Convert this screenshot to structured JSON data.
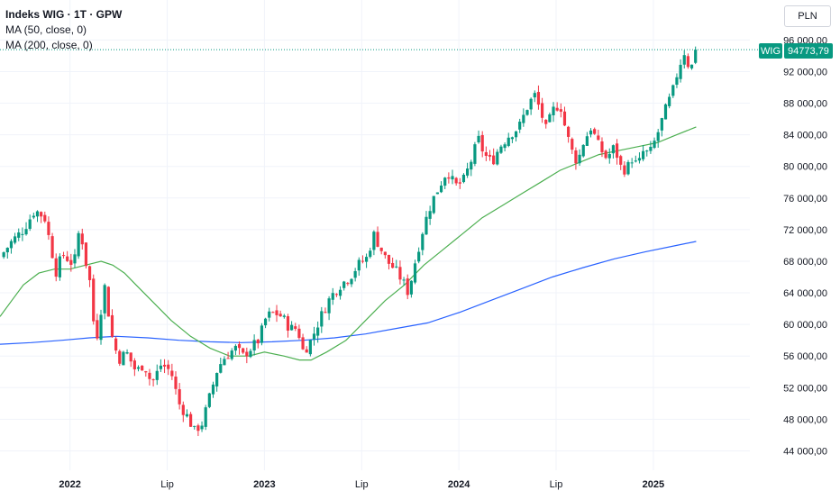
{
  "header": {
    "title": "Indeks WIG · 1T · GPW",
    "ma50_label": "MA (50, close, 0)",
    "ma200_label": "MA (200, close, 0)",
    "currency": "PLN"
  },
  "price_tag": {
    "symbol": "WIG",
    "value": "94773,79",
    "price": 94773.79
  },
  "colors": {
    "up": "#089981",
    "down": "#f23645",
    "ma50": "#4caf50",
    "ma200": "#2962ff",
    "grid": "#f0f3fa",
    "text": "#131722",
    "price_line": "#089981"
  },
  "chart_data": {
    "type": "candlestick",
    "title": "Indeks WIG · 1T · GPW",
    "ylim": [
      42000,
      96500
    ],
    "y_ticks": [
      "96 000,00",
      "92 000,00",
      "88 000,00",
      "84 000,00",
      "80 000,00",
      "76 000,00",
      "72 000,00",
      "68 000,00",
      "64 000,00",
      "60 000,00",
      "56 000,00",
      "52 000,00",
      "48 000,00",
      "44 000,00"
    ],
    "y_tick_values": [
      96000,
      92000,
      88000,
      84000,
      80000,
      76000,
      72000,
      68000,
      64000,
      60000,
      56000,
      52000,
      48000,
      44000
    ],
    "x_ticks": [
      {
        "label": "2022",
        "t": 2022.0
      },
      {
        "label": "Lip",
        "t": 2022.5
      },
      {
        "label": "2023",
        "t": 2023.0
      },
      {
        "label": "Lip",
        "t": 2023.5
      },
      {
        "label": "2024",
        "t": 2024.0
      },
      {
        "label": "Lip",
        "t": 2024.5
      },
      {
        "label": "2025",
        "t": 2025.0
      }
    ],
    "x_range": [
      2021.64,
      2025.96
    ],
    "close_path": [
      [
        2021.64,
        68500
      ],
      [
        2021.7,
        70500
      ],
      [
        2021.76,
        72000
      ],
      [
        2021.82,
        74500
      ],
      [
        2021.87,
        73500
      ],
      [
        2021.9,
        70000
      ],
      [
        2021.93,
        66500
      ],
      [
        2021.96,
        69000
      ],
      [
        2022.02,
        67500
      ],
      [
        2022.05,
        72500
      ],
      [
        2022.08,
        68000
      ],
      [
        2022.11,
        64500
      ],
      [
        2022.13,
        57000
      ],
      [
        2022.15,
        60500
      ],
      [
        2022.18,
        65000
      ],
      [
        2022.21,
        59000
      ],
      [
        2022.25,
        55500
      ],
      [
        2022.29,
        56500
      ],
      [
        2022.34,
        54000
      ],
      [
        2022.38,
        55000
      ],
      [
        2022.42,
        52500
      ],
      [
        2022.47,
        55000
      ],
      [
        2022.52,
        54000
      ],
      [
        2022.56,
        50000
      ],
      [
        2022.6,
        48500
      ],
      [
        2022.64,
        46500
      ],
      [
        2022.68,
        47500
      ],
      [
        2022.72,
        51000
      ],
      [
        2022.76,
        54500
      ],
      [
        2022.8,
        56000
      ],
      [
        2022.85,
        57000
      ],
      [
        2022.89,
        56000
      ],
      [
        2022.93,
        57000
      ],
      [
        2022.97,
        58000
      ],
      [
        2023.01,
        61000
      ],
      [
        2023.05,
        61500
      ],
      [
        2023.09,
        61000
      ],
      [
        2023.13,
        59500
      ],
      [
        2023.17,
        59500
      ],
      [
        2023.2,
        56500
      ],
      [
        2023.24,
        58000
      ],
      [
        2023.29,
        61000
      ],
      [
        2023.34,
        63500
      ],
      [
        2023.39,
        65000
      ],
      [
        2023.44,
        66000
      ],
      [
        2023.48,
        67500
      ],
      [
        2023.53,
        68500
      ],
      [
        2023.56,
        71500
      ],
      [
        2023.59,
        70000
      ],
      [
        2023.63,
        68000
      ],
      [
        2023.67,
        67000
      ],
      [
        2023.71,
        65500
      ],
      [
        2023.74,
        64000
      ],
      [
        2023.78,
        68500
      ],
      [
        2023.82,
        72500
      ],
      [
        2023.86,
        75500
      ],
      [
        2023.9,
        77500
      ],
      [
        2023.94,
        79500
      ],
      [
        2023.98,
        77500
      ],
      [
        2024.02,
        78000
      ],
      [
        2024.06,
        80500
      ],
      [
        2024.1,
        83500
      ],
      [
        2024.13,
        81500
      ],
      [
        2024.17,
        80500
      ],
      [
        2024.21,
        82500
      ],
      [
        2024.26,
        84000
      ],
      [
        2024.31,
        85000
      ],
      [
        2024.36,
        88000
      ],
      [
        2024.39,
        89000
      ],
      [
        2024.42,
        87000
      ],
      [
        2024.45,
        84500
      ],
      [
        2024.48,
        87000
      ],
      [
        2024.52,
        88000
      ],
      [
        2024.55,
        84500
      ],
      [
        2024.58,
        82000
      ],
      [
        2024.61,
        80500
      ],
      [
        2024.64,
        83000
      ],
      [
        2024.68,
        85000
      ],
      [
        2024.72,
        82500
      ],
      [
        2024.76,
        81000
      ],
      [
        2024.8,
        82500
      ],
      [
        2024.83,
        80000
      ],
      [
        2024.86,
        79500
      ],
      [
        2024.89,
        81000
      ],
      [
        2024.92,
        80000
      ],
      [
        2024.95,
        82000
      ],
      [
        2024.98,
        81500
      ],
      [
        2025.02,
        84000
      ],
      [
        2025.06,
        87000
      ],
      [
        2025.1,
        89500
      ],
      [
        2025.13,
        92500
      ],
      [
        2025.16,
        94500
      ],
      [
        2025.19,
        92000
      ],
      [
        2025.22,
        94773.79
      ]
    ],
    "series": [
      {
        "name": "MA (50, close, 0)",
        "points": [
          [
            2021.64,
            61000
          ],
          [
            2021.7,
            63000
          ],
          [
            2021.76,
            65000
          ],
          [
            2021.84,
            66500
          ],
          [
            2021.92,
            67000
          ],
          [
            2022.0,
            67000
          ],
          [
            2022.08,
            67500
          ],
          [
            2022.16,
            68000
          ],
          [
            2022.22,
            67500
          ],
          [
            2022.28,
            66500
          ],
          [
            2022.34,
            65000
          ],
          [
            2022.42,
            63000
          ],
          [
            2022.52,
            60500
          ],
          [
            2022.62,
            58500
          ],
          [
            2022.72,
            57000
          ],
          [
            2022.82,
            56000
          ],
          [
            2022.92,
            56000
          ],
          [
            2023.0,
            56500
          ],
          [
            2023.1,
            56000
          ],
          [
            2023.18,
            55500
          ],
          [
            2023.24,
            55500
          ],
          [
            2023.32,
            56500
          ],
          [
            2023.42,
            58000
          ],
          [
            2023.52,
            60500
          ],
          [
            2023.62,
            63000
          ],
          [
            2023.72,
            65000
          ],
          [
            2023.82,
            67500
          ],
          [
            2023.92,
            69500
          ],
          [
            2024.02,
            71500
          ],
          [
            2024.12,
            73500
          ],
          [
            2024.22,
            75000
          ],
          [
            2024.32,
            76500
          ],
          [
            2024.42,
            78000
          ],
          [
            2024.52,
            79500
          ],
          [
            2024.62,
            80500
          ],
          [
            2024.72,
            81500
          ],
          [
            2024.82,
            82000
          ],
          [
            2024.92,
            82500
          ],
          [
            2025.02,
            83000
          ],
          [
            2025.12,
            84000
          ],
          [
            2025.22,
            85000
          ]
        ]
      },
      {
        "name": "MA (200, close, 0)",
        "points": [
          [
            2021.64,
            57500
          ],
          [
            2021.8,
            57700
          ],
          [
            2021.96,
            58000
          ],
          [
            2022.1,
            58300
          ],
          [
            2022.24,
            58500
          ],
          [
            2022.4,
            58300
          ],
          [
            2022.56,
            58000
          ],
          [
            2022.72,
            57800
          ],
          [
            2022.88,
            57700
          ],
          [
            2023.04,
            57800
          ],
          [
            2023.2,
            58000
          ],
          [
            2023.36,
            58300
          ],
          [
            2023.52,
            58800
          ],
          [
            2023.68,
            59500
          ],
          [
            2023.84,
            60200
          ],
          [
            2024.0,
            61500
          ],
          [
            2024.16,
            63000
          ],
          [
            2024.32,
            64500
          ],
          [
            2024.48,
            66000
          ],
          [
            2024.64,
            67200
          ],
          [
            2024.8,
            68300
          ],
          [
            2024.96,
            69200
          ],
          [
            2025.12,
            70000
          ],
          [
            2025.22,
            70500
          ]
        ]
      }
    ]
  }
}
